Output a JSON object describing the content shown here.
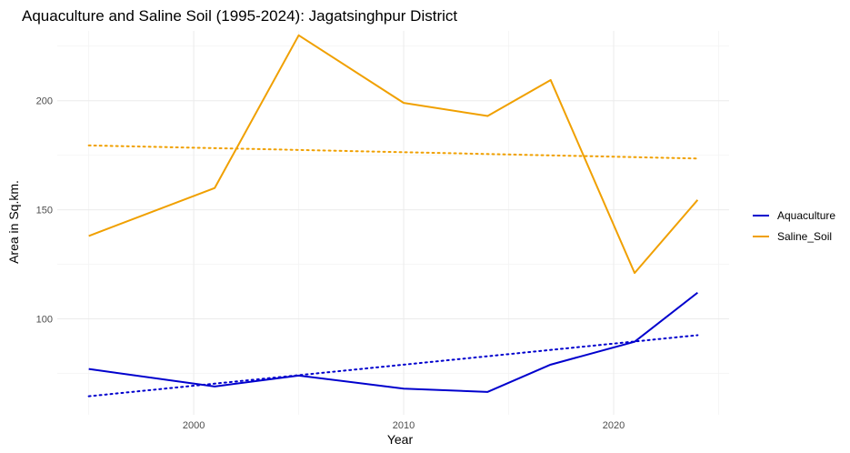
{
  "chart_data": {
    "type": "line",
    "title": "Aquaculture and Saline Soil (1995-2024): Jagatsinghpur District",
    "xlabel": "Year",
    "ylabel": "Area in Sq.km.",
    "xlim": [
      1993.5,
      2025.5
    ],
    "ylim": [
      56,
      232
    ],
    "x_ticks": [
      2000,
      2010,
      2020
    ],
    "y_ticks": [
      100,
      150,
      200
    ],
    "x_minor": [
      1995,
      2005,
      2015,
      2025
    ],
    "y_minor": [
      75,
      125,
      175,
      225
    ],
    "grid": true,
    "legend_position": "right",
    "series": [
      {
        "name": "Aquaculture",
        "color": "#0000cd",
        "x": [
          1995,
          2001,
          2005,
          2010,
          2014,
          2017,
          2021,
          2024
        ],
        "y": [
          77,
          69,
          74,
          68,
          66.5,
          79,
          89.5,
          112
        ]
      },
      {
        "name": "Saline_Soil",
        "color": "#f0a000",
        "x": [
          1995,
          2001,
          2005,
          2010,
          2014,
          2017,
          2021,
          2024
        ],
        "y": [
          138,
          160,
          230,
          199,
          193,
          209.5,
          121,
          154.5
        ]
      }
    ],
    "trend_lines": [
      {
        "series": "Aquaculture",
        "color": "#0000cd",
        "style": "dotted",
        "x": [
          1995,
          2024
        ],
        "y": [
          64.5,
          92.5
        ]
      },
      {
        "series": "Saline_Soil",
        "color": "#f0a000",
        "style": "dotted",
        "x": [
          1995,
          2024
        ],
        "y": [
          179.5,
          173.5
        ]
      }
    ]
  }
}
